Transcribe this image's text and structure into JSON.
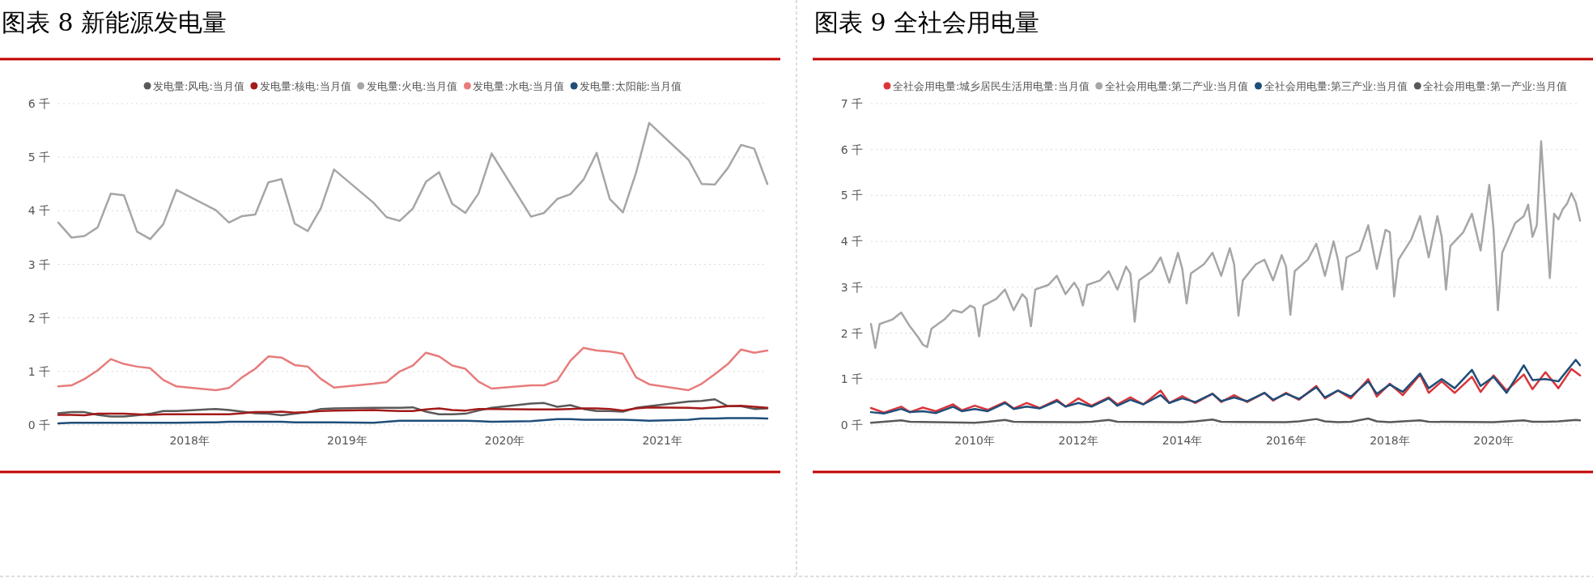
{
  "chart_data": [
    {
      "type": "line",
      "title": "图表 8 新能源发电量",
      "legend": "top",
      "grid": "y",
      "xlim": [
        "2017-03",
        "2021-09"
      ],
      "xticks": [
        {
          "value": "2018-01",
          "label": "2018年"
        },
        {
          "value": "2019-01",
          "label": "2019年"
        },
        {
          "value": "2020-01",
          "label": "2020年"
        },
        {
          "value": "2021-01",
          "label": "2021年"
        }
      ],
      "ylim": [
        0,
        6
      ],
      "yticks": [
        {
          "value": 0,
          "label": "0 千"
        },
        {
          "value": 1,
          "label": "1 千"
        },
        {
          "value": 2,
          "label": "2 千"
        },
        {
          "value": 3,
          "label": "3 千"
        },
        {
          "value": 4,
          "label": "4 千"
        },
        {
          "value": 5,
          "label": "5 千"
        },
        {
          "value": 6,
          "label": "6 千"
        }
      ],
      "x": [
        "2017-03",
        "2017-04",
        "2017-05",
        "2017-06",
        "2017-07",
        "2017-08",
        "2017-09",
        "2017-10",
        "2017-11",
        "2017-12",
        "2018-03",
        "2018-04",
        "2018-05",
        "2018-06",
        "2018-07",
        "2018-08",
        "2018-09",
        "2018-10",
        "2018-11",
        "2018-12",
        "2019-03",
        "2019-04",
        "2019-05",
        "2019-06",
        "2019-07",
        "2019-08",
        "2019-09",
        "2019-10",
        "2019-11",
        "2019-12",
        "2020-03",
        "2020-04",
        "2020-05",
        "2020-06",
        "2020-07",
        "2020-08",
        "2020-09",
        "2020-10",
        "2020-11",
        "2020-12",
        "2021-03",
        "2021-04",
        "2021-05",
        "2021-06",
        "2021-07",
        "2021-08",
        "2021-09"
      ],
      "series": [
        {
          "name": "发电量:风电:当月值",
          "color": "#595959",
          "values": [
            0.22,
            0.24,
            0.24,
            0.19,
            0.16,
            0.16,
            0.18,
            0.21,
            0.26,
            0.26,
            0.3,
            0.28,
            0.25,
            0.22,
            0.21,
            0.18,
            0.21,
            0.24,
            0.3,
            0.31,
            0.32,
            0.32,
            0.32,
            0.33,
            0.25,
            0.2,
            0.2,
            0.21,
            0.27,
            0.32,
            0.4,
            0.41,
            0.34,
            0.37,
            0.3,
            0.26,
            0.26,
            0.25,
            0.32,
            0.35,
            0.44,
            0.45,
            0.48,
            0.35,
            0.35,
            0.3,
            0.31
          ]
        },
        {
          "name": "发电量:核电:当月值",
          "color": "#a31a1a",
          "values": [
            0.19,
            0.19,
            0.18,
            0.21,
            0.21,
            0.21,
            0.2,
            0.19,
            0.2,
            0.2,
            0.2,
            0.2,
            0.22,
            0.24,
            0.24,
            0.25,
            0.23,
            0.24,
            0.26,
            0.27,
            0.28,
            0.27,
            0.26,
            0.26,
            0.29,
            0.31,
            0.28,
            0.27,
            0.3,
            0.3,
            0.29,
            0.29,
            0.29,
            0.3,
            0.31,
            0.31,
            0.3,
            0.27,
            0.31,
            0.33,
            0.32,
            0.31,
            0.33,
            0.35,
            0.36,
            0.34,
            0.32
          ]
        },
        {
          "name": "发电量:火电:当月值",
          "color": "#a6a6a6",
          "values": [
            3.78,
            3.5,
            3.53,
            3.69,
            4.32,
            4.29,
            3.61,
            3.47,
            3.75,
            4.39,
            4.01,
            3.78,
            3.9,
            3.93,
            4.53,
            4.59,
            3.76,
            3.62,
            4.05,
            4.77,
            4.15,
            3.88,
            3.81,
            4.04,
            4.54,
            4.72,
            4.13,
            3.96,
            4.32,
            5.07,
            3.89,
            3.96,
            4.22,
            4.31,
            4.58,
            5.08,
            4.22,
            3.97,
            4.71,
            5.64,
            4.95,
            4.5,
            4.49,
            4.8,
            5.23,
            5.16,
            4.5
          ]
        },
        {
          "name": "发电量:水电:当月值",
          "color": "#e87b7b",
          "values": [
            0.72,
            0.74,
            0.86,
            1.02,
            1.23,
            1.14,
            1.09,
            1.06,
            0.84,
            0.72,
            0.65,
            0.69,
            0.89,
            1.05,
            1.28,
            1.26,
            1.12,
            1.09,
            0.86,
            0.7,
            0.77,
            0.8,
            1.0,
            1.11,
            1.35,
            1.28,
            1.11,
            1.05,
            0.81,
            0.68,
            0.74,
            0.74,
            0.83,
            1.2,
            1.44,
            1.39,
            1.37,
            1.33,
            0.89,
            0.76,
            0.65,
            0.77,
            0.95,
            1.14,
            1.41,
            1.35,
            1.39
          ]
        },
        {
          "name": "发电量:太阳能:当月值",
          "color": "#1f4e79",
          "values": [
            0.03,
            0.04,
            0.04,
            0.04,
            0.04,
            0.04,
            0.04,
            0.04,
            0.04,
            0.04,
            0.05,
            0.06,
            0.06,
            0.06,
            0.06,
            0.06,
            0.05,
            0.05,
            0.05,
            0.05,
            0.04,
            0.06,
            0.08,
            0.08,
            0.08,
            0.08,
            0.08,
            0.08,
            0.07,
            0.06,
            0.07,
            0.09,
            0.11,
            0.11,
            0.1,
            0.1,
            0.1,
            0.1,
            0.09,
            0.08,
            0.1,
            0.12,
            0.12,
            0.13,
            0.13,
            0.13,
            0.12
          ]
        }
      ]
    },
    {
      "type": "line",
      "title": "图表 9 全社会用电量",
      "legend": "top",
      "grid": "y",
      "xlim": [
        "2008-01",
        "2021-09"
      ],
      "xticks": [
        {
          "value": "2010-01",
          "label": "2010年"
        },
        {
          "value": "2012-01",
          "label": "2012年"
        },
        {
          "value": "2014-01",
          "label": "2014年"
        },
        {
          "value": "2016-01",
          "label": "2016年"
        },
        {
          "value": "2018-01",
          "label": "2018年"
        },
        {
          "value": "2020-01",
          "label": "2020年"
        }
      ],
      "ylim": [
        0,
        7
      ],
      "yticks": [
        {
          "value": 0,
          "label": "0 千"
        },
        {
          "value": 1,
          "label": "1 千"
        },
        {
          "value": 2,
          "label": "2 千"
        },
        {
          "value": 3,
          "label": "3 千"
        },
        {
          "value": 4,
          "label": "4 千"
        },
        {
          "value": 5,
          "label": "5 千"
        },
        {
          "value": 6,
          "label": "6 千"
        },
        {
          "value": 7,
          "label": "7 千"
        }
      ],
      "series": [
        {
          "name": "全社会用电量:城乡居民生活用电量:当月值",
          "color": "#d9353a",
          "x": [
            "2008-01",
            "2008-04",
            "2008-08",
            "2008-10",
            "2009-01",
            "2009-04",
            "2009-08",
            "2009-10",
            "2010-01",
            "2010-04",
            "2010-08",
            "2010-10",
            "2011-01",
            "2011-04",
            "2011-08",
            "2011-10",
            "2012-01",
            "2012-04",
            "2012-08",
            "2012-10",
            "2013-01",
            "2013-04",
            "2013-08",
            "2013-10",
            "2014-01",
            "2014-04",
            "2014-08",
            "2014-10",
            "2015-01",
            "2015-04",
            "2015-08",
            "2015-10",
            "2016-01",
            "2016-04",
            "2016-08",
            "2016-10",
            "2017-01",
            "2017-04",
            "2017-08",
            "2017-10",
            "2018-01",
            "2018-04",
            "2018-08",
            "2018-10",
            "2019-01",
            "2019-04",
            "2019-08",
            "2019-10",
            "2020-01",
            "2020-04",
            "2020-08",
            "2020-10",
            "2021-01",
            "2021-04",
            "2021-07",
            "2021-09"
          ],
          "values": [
            0.37,
            0.27,
            0.4,
            0.28,
            0.38,
            0.3,
            0.45,
            0.32,
            0.42,
            0.33,
            0.5,
            0.36,
            0.48,
            0.37,
            0.55,
            0.4,
            0.58,
            0.42,
            0.6,
            0.45,
            0.6,
            0.45,
            0.75,
            0.48,
            0.63,
            0.48,
            0.68,
            0.5,
            0.65,
            0.5,
            0.7,
            0.53,
            0.7,
            0.55,
            0.85,
            0.58,
            0.75,
            0.58,
            1.0,
            0.62,
            0.9,
            0.65,
            1.1,
            0.7,
            0.95,
            0.7,
            1.05,
            0.72,
            1.08,
            0.75,
            1.1,
            0.78,
            1.15,
            0.8,
            1.22,
            1.08
          ]
        },
        {
          "name": "全社会用电量:第二产业:当月值",
          "color": "#a6a6a6",
          "x": [
            "2008-01",
            "2008-02",
            "2008-03",
            "2008-06",
            "2008-08",
            "2008-10",
            "2008-12",
            "2009-01",
            "2009-02",
            "2009-03",
            "2009-06",
            "2009-08",
            "2009-10",
            "2009-12",
            "2010-01",
            "2010-02",
            "2010-03",
            "2010-06",
            "2010-08",
            "2010-10",
            "2010-12",
            "2011-01",
            "2011-02",
            "2011-03",
            "2011-06",
            "2011-08",
            "2011-10",
            "2011-12",
            "2012-01",
            "2012-02",
            "2012-03",
            "2012-06",
            "2012-08",
            "2012-10",
            "2012-12",
            "2013-01",
            "2013-02",
            "2013-03",
            "2013-06",
            "2013-08",
            "2013-10",
            "2013-12",
            "2014-01",
            "2014-02",
            "2014-03",
            "2014-06",
            "2014-08",
            "2014-10",
            "2014-12",
            "2015-01",
            "2015-02",
            "2015-03",
            "2015-06",
            "2015-08",
            "2015-10",
            "2015-12",
            "2016-01",
            "2016-02",
            "2016-03",
            "2016-06",
            "2016-08",
            "2016-10",
            "2016-12",
            "2017-01",
            "2017-02",
            "2017-03",
            "2017-06",
            "2017-08",
            "2017-10",
            "2017-12",
            "2018-01",
            "2018-02",
            "2018-03",
            "2018-06",
            "2018-08",
            "2018-10",
            "2018-12",
            "2019-01",
            "2019-02",
            "2019-03",
            "2019-06",
            "2019-08",
            "2019-10",
            "2019-12",
            "2020-01",
            "2020-02",
            "2020-03",
            "2020-06",
            "2020-08",
            "2020-09",
            "2020-10",
            "2020-11",
            "2020-12",
            "2021-02",
            "2021-03",
            "2021-04",
            "2021-05",
            "2021-06",
            "2021-07",
            "2021-08",
            "2021-09"
          ],
          "values": [
            2.2,
            1.68,
            2.2,
            2.3,
            2.45,
            2.15,
            1.9,
            1.75,
            1.7,
            2.1,
            2.3,
            2.5,
            2.45,
            2.6,
            2.55,
            1.93,
            2.6,
            2.75,
            2.95,
            2.5,
            2.85,
            2.75,
            2.15,
            2.95,
            3.05,
            3.25,
            2.85,
            3.1,
            2.95,
            2.6,
            3.05,
            3.15,
            3.35,
            2.95,
            3.45,
            3.3,
            2.25,
            3.15,
            3.35,
            3.65,
            3.1,
            3.75,
            3.4,
            2.65,
            3.3,
            3.5,
            3.75,
            3.25,
            3.85,
            3.5,
            2.38,
            3.15,
            3.5,
            3.6,
            3.15,
            3.7,
            3.45,
            2.4,
            3.35,
            3.6,
            3.95,
            3.25,
            4.0,
            3.6,
            2.95,
            3.65,
            3.8,
            4.35,
            3.4,
            4.25,
            4.2,
            2.8,
            3.6,
            4.05,
            4.55,
            3.65,
            4.55,
            4.1,
            2.95,
            3.9,
            4.2,
            4.6,
            3.8,
            5.23,
            4.25,
            2.5,
            3.75,
            4.4,
            4.55,
            4.8,
            4.1,
            4.35,
            6.18,
            3.2,
            4.6,
            4.48,
            4.7,
            4.82,
            5.05,
            4.85,
            4.45
          ]
        },
        {
          "name": "全社会用电量:第三产业:当月值",
          "color": "#1f4e79",
          "x": [
            "2008-01",
            "2008-04",
            "2008-08",
            "2008-10",
            "2009-01",
            "2009-04",
            "2009-08",
            "2009-10",
            "2010-01",
            "2010-04",
            "2010-08",
            "2010-10",
            "2011-01",
            "2011-04",
            "2011-08",
            "2011-10",
            "2012-01",
            "2012-04",
            "2012-08",
            "2012-10",
            "2013-01",
            "2013-04",
            "2013-08",
            "2013-10",
            "2014-01",
            "2014-04",
            "2014-08",
            "2014-10",
            "2015-01",
            "2015-04",
            "2015-08",
            "2015-10",
            "2016-01",
            "2016-04",
            "2016-08",
            "2016-10",
            "2017-01",
            "2017-04",
            "2017-08",
            "2017-10",
            "2018-01",
            "2018-04",
            "2018-08",
            "2018-10",
            "2019-01",
            "2019-04",
            "2019-08",
            "2019-10",
            "2020-01",
            "2020-04",
            "2020-08",
            "2020-10",
            "2021-01",
            "2021-04",
            "2021-08",
            "2021-09"
          ],
          "values": [
            0.28,
            0.25,
            0.35,
            0.28,
            0.3,
            0.26,
            0.4,
            0.3,
            0.35,
            0.3,
            0.48,
            0.35,
            0.4,
            0.36,
            0.52,
            0.4,
            0.48,
            0.4,
            0.58,
            0.42,
            0.55,
            0.45,
            0.65,
            0.48,
            0.58,
            0.5,
            0.68,
            0.52,
            0.6,
            0.52,
            0.7,
            0.55,
            0.68,
            0.57,
            0.82,
            0.6,
            0.75,
            0.62,
            0.95,
            0.68,
            0.88,
            0.72,
            1.12,
            0.8,
            1.0,
            0.8,
            1.2,
            0.85,
            1.05,
            0.7,
            1.3,
            0.98,
            1.0,
            0.95,
            1.42,
            1.3
          ]
        },
        {
          "name": "全社会用电量:第一产业:当月值",
          "color": "#595959",
          "x": [
            "2008-01",
            "2008-04",
            "2008-08",
            "2008-10",
            "2010-01",
            "2010-04",
            "2010-08",
            "2010-10",
            "2012-01",
            "2012-04",
            "2012-08",
            "2012-10",
            "2014-01",
            "2014-04",
            "2014-08",
            "2014-10",
            "2016-01",
            "2016-04",
            "2016-08",
            "2016-10",
            "2017-01",
            "2017-04",
            "2017-08",
            "2017-10",
            "2018-01",
            "2018-04",
            "2018-08",
            "2018-10",
            "2020-01",
            "2020-04",
            "2020-08",
            "2020-10",
            "2021-01",
            "2021-04",
            "2021-08",
            "2021-09"
          ],
          "values": [
            0.05,
            0.07,
            0.1,
            0.07,
            0.05,
            0.07,
            0.11,
            0.07,
            0.06,
            0.07,
            0.11,
            0.07,
            0.06,
            0.08,
            0.12,
            0.07,
            0.06,
            0.08,
            0.13,
            0.08,
            0.06,
            0.07,
            0.14,
            0.08,
            0.06,
            0.08,
            0.1,
            0.07,
            0.06,
            0.08,
            0.1,
            0.07,
            0.07,
            0.08,
            0.11,
            0.1
          ]
        }
      ]
    }
  ]
}
